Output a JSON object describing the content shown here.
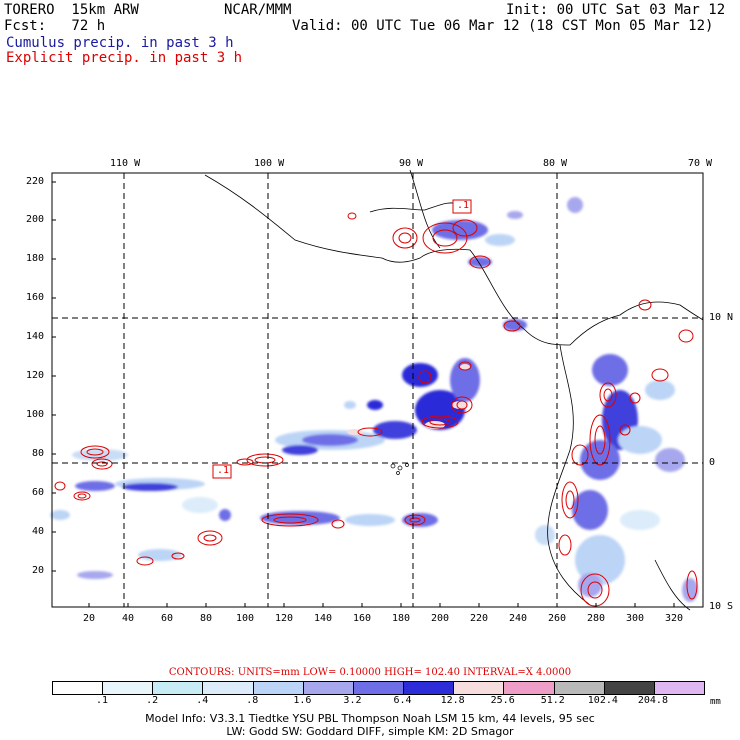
{
  "header": {
    "model": "TORERO  15km ARW",
    "org": "NCAR/MMM",
    "init": "Init: 00 UTC Sat 03 Mar 12",
    "fcst": "Fcst:   72 h",
    "valid": "Valid: 00 UTC Tue 06 Mar 12 (18 CST Mon 05 Mar 12)",
    "line_cumulus": "Cumulus precip. in past 3 h",
    "line_explicit": "Explicit precip. in past 3 h"
  },
  "map": {
    "top_lon_labels": [
      "110 W",
      "100 W",
      "90 W",
      "80 W",
      "70 W"
    ],
    "right_lat_labels": [
      "10 N",
      "0",
      "10 S"
    ],
    "left_ticks": [
      "220",
      "200",
      "180",
      "160",
      "140",
      "120",
      "100",
      "80",
      "60",
      "40",
      "20"
    ],
    "bottom_ticks": [
      "20",
      "40",
      "60",
      "80",
      "100",
      "120",
      "140",
      "160",
      "180",
      "200",
      "220",
      "240",
      "260",
      "280",
      "300",
      "320"
    ],
    "box_labels": [
      ".1",
      ".1"
    ]
  },
  "contours": {
    "text": "CONTOURS:  UNITS=mm  LOW= 0.10000        HIGH=  102.40        INTERVAL=X  4.0000"
  },
  "colorbar": {
    "colors": [
      "#ffffff",
      "#e8f6fb",
      "#c7ecf6",
      "#dcecfa",
      "#bcd4f6",
      "#a7a7ee",
      "#6e6ee6",
      "#2c2cd8",
      "#f7dede",
      "#ee9ec7",
      "#b9b9b9",
      "#444444",
      "#e0b7f2"
    ],
    "labels": [
      ".1",
      ".2",
      ".4",
      ".8",
      "1.6",
      "3.2",
      "6.4",
      "12.8",
      "25.6",
      "51.2",
      "102.4",
      "204.8"
    ],
    "unit": "mm"
  },
  "footer": {
    "line1": "Model Info: V3.3.1    Tiedtke YSU PBL   Thompson     Noah LSM  15 km,    44 levels,    95 sec",
    "line2": "LW: Godd SW: Goddard DIFF, simple KM: 2D Smagor"
  },
  "colors": {
    "cumulus": "#1a1aa0",
    "explicit": "#dd0000"
  }
}
